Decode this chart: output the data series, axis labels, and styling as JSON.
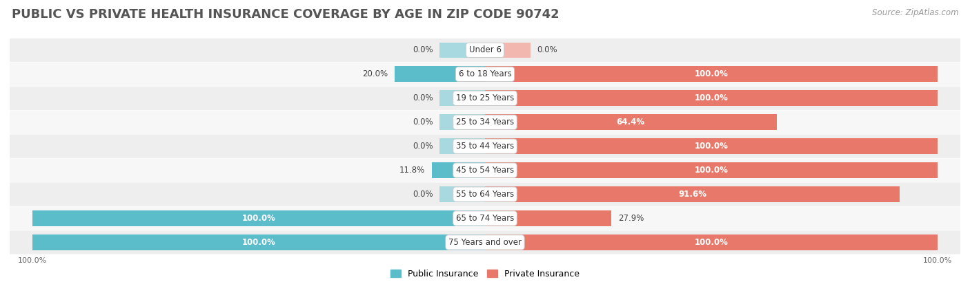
{
  "title": "PUBLIC VS PRIVATE HEALTH INSURANCE COVERAGE BY AGE IN ZIP CODE 90742",
  "source": "Source: ZipAtlas.com",
  "categories": [
    "Under 6",
    "6 to 18 Years",
    "19 to 25 Years",
    "25 to 34 Years",
    "35 to 44 Years",
    "45 to 54 Years",
    "55 to 64 Years",
    "65 to 74 Years",
    "75 Years and over"
  ],
  "public_values": [
    0.0,
    20.0,
    0.0,
    0.0,
    0.0,
    11.8,
    0.0,
    100.0,
    100.0
  ],
  "private_values": [
    0.0,
    100.0,
    100.0,
    64.4,
    100.0,
    100.0,
    91.6,
    27.9,
    100.0
  ],
  "public_color": "#5bbcca",
  "private_color": "#e8796a",
  "public_color_light": "#a8d8e0",
  "private_color_light": "#f2b8b0",
  "row_color_odd": "#f7f7f7",
  "row_color_even": "#eeeeee",
  "background_color": "#ffffff",
  "title_fontsize": 13,
  "label_fontsize": 8.5,
  "category_fontsize": 8.5,
  "source_fontsize": 8.5,
  "legend_fontsize": 9,
  "axis_label_fontsize": 8,
  "bar_height": 0.65,
  "stub_value": 10
}
